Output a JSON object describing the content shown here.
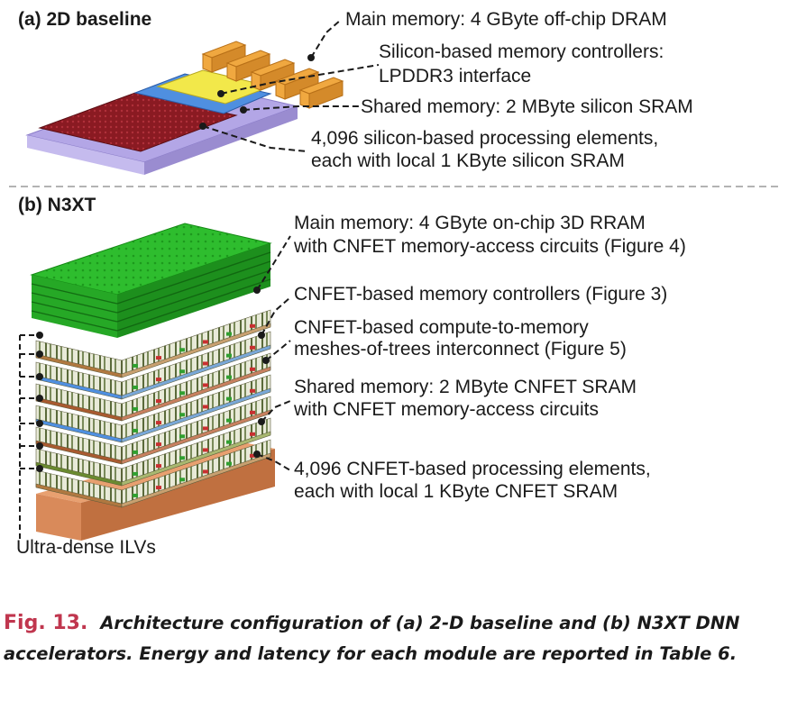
{
  "sections": {
    "a": "(a) 2D baseline",
    "b": "(b) N3XT"
  },
  "labels_a": {
    "main_memory": "Main memory: 4 GByte off-chip DRAM",
    "controllers_1": "Silicon-based memory controllers:",
    "controllers_2": "LPDDR3 interface",
    "shared": "Shared memory: 2 MByte silicon SRAM",
    "pe_1": "4,096 silicon-based processing elements,",
    "pe_2": "each with local 1 KByte silicon SRAM"
  },
  "labels_b": {
    "main_1": "Main memory: 4 GByte on-chip 3D RRAM",
    "main_2": "with CNFET memory-access circuits (Figure 4)",
    "controllers": "CNFET-based memory controllers (Figure 3)",
    "mesh_1": "CNFET-based compute-to-memory",
    "mesh_2": "meshes-of-trees interconnect (Figure 5)",
    "shared_1": "Shared memory: 2 MByte CNFET SRAM",
    "shared_2": "with CNFET memory-access circuits",
    "pe_1": "4,096 CNFET-based processing elements,",
    "pe_2": "each with local 1 KByte CNFET SRAM",
    "ilv": "Ultra-dense ILVs"
  },
  "caption": {
    "fig": "Fig. 13.",
    "text": "Architecture configuration of (a) 2-D baseline and (b) N3XT DNN accelerators. Energy and latency for each module are reported in Table 6."
  },
  "colors": {
    "substrate": "#b3a6e6",
    "pe_array": "#8a1a22",
    "dram": "#f0a840",
    "shared_sram": "#4f8fe0",
    "controllers": "#f2e84a",
    "rram": "#2ebd2e",
    "copper": "#d98a5a",
    "caption_accent": "#c0364e"
  }
}
